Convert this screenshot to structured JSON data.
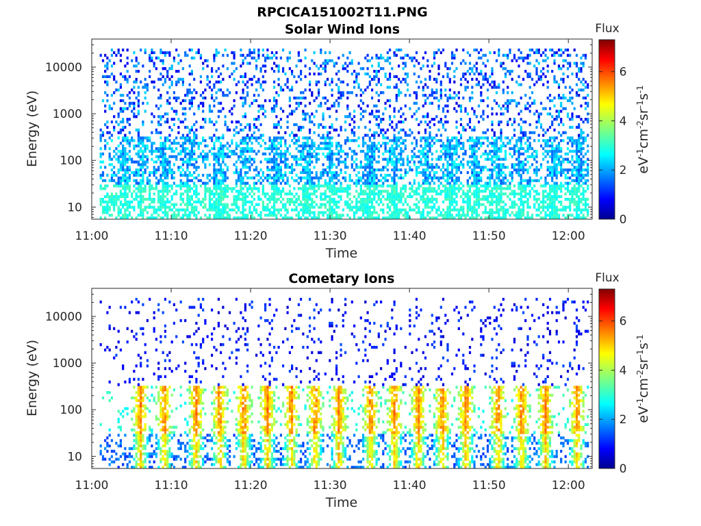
{
  "figure": {
    "title": "RPCICA151002T11.PNG"
  },
  "chart_data": [
    {
      "type": "heatmap",
      "title": "Solar Wind Ions",
      "xlabel": "Time",
      "ylabel": "Energy (eV)",
      "yscale": "log",
      "xlim": [
        "11:00",
        "12:03"
      ],
      "ylim": [
        5.5,
        40000
      ],
      "xticks": [
        "11:00",
        "11:10",
        "11:20",
        "11:30",
        "11:40",
        "11:50",
        "12:00"
      ],
      "yticks": [
        "10",
        "100",
        "1000",
        "10000"
      ],
      "time_span": [
        "11:01",
        "12:02"
      ],
      "colorbar": {
        "title": "Flux",
        "label": "eV-1cm-2sr-1s-1",
        "range": [
          0,
          7.3
        ],
        "ticks": [
          "0",
          "2",
          "4",
          "6"
        ],
        "colormap": "jet"
      },
      "description_of_values": {
        "above_300_eV": "sparse counts, flux 0.5-2.5",
        "30_to_300_eV": "flux 1.5-3, bursts to 3",
        "below_30_eV": "flux about 3"
      },
      "burst_times": [
        "11:04",
        "11:06",
        "11:09",
        "11:12",
        "11:16",
        "11:19",
        "11:23",
        "11:27",
        "11:30",
        "11:35",
        "11:38",
        "11:42",
        "11:45",
        "11:48",
        "11:51",
        "11:54",
        "11:58",
        "12:01"
      ]
    },
    {
      "type": "heatmap",
      "title": "Cometary Ions",
      "xlabel": "Time",
      "ylabel": "Energy (eV)",
      "yscale": "log",
      "xlim": [
        "11:00",
        "12:03"
      ],
      "ylim": [
        5.5,
        40000
      ],
      "xticks": [
        "11:00",
        "11:10",
        "11:20",
        "11:30",
        "11:40",
        "11:50",
        "12:00"
      ],
      "yticks": [
        "10",
        "100",
        "1000",
        "10000"
      ],
      "time_span": [
        "11:01",
        "12:02"
      ],
      "colorbar": {
        "title": "Flux",
        "label": "eV-1cm-2sr-1s-1",
        "range": [
          0,
          7.3
        ],
        "ticks": [
          "0",
          "2",
          "4",
          "6"
        ],
        "colormap": "jet"
      },
      "description_of_values": {
        "above_300_eV": "sparse counts, flux 0.5-1.5",
        "30_to_300_eV": "flux 3-5.5 in bursts",
        "below_30_eV": "flux 2-5"
      },
      "burst_times": [
        "11:06",
        "11:09",
        "11:13",
        "11:16",
        "11:19",
        "11:22",
        "11:25",
        "11:28",
        "11:31",
        "11:35",
        "11:38",
        "11:41",
        "11:44",
        "11:47",
        "11:51",
        "11:54",
        "11:57",
        "12:01"
      ]
    }
  ]
}
